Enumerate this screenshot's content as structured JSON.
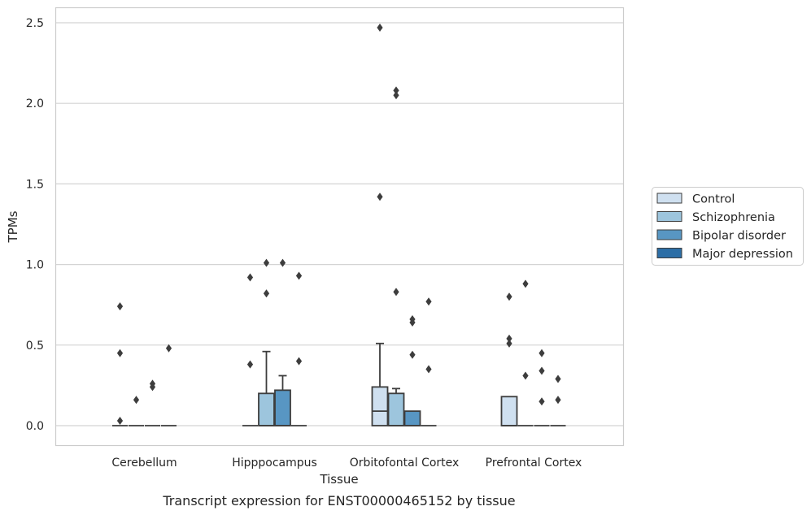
{
  "chart_data": {
    "type": "box",
    "title": "",
    "caption": "Transcript expression for ENST00000465152 by tissue",
    "xlabel": "Tissue",
    "ylabel": "TPMs",
    "ylim": [
      -0.12,
      2.6
    ],
    "yticks": [
      "0.0",
      "0.5",
      "1.0",
      "1.5",
      "2.0",
      "2.5"
    ],
    "grid": true,
    "legend_position": "right",
    "categories": [
      "Cerebellum",
      "Hipppocampus",
      "Orbitofontal Cortex",
      "Prefrontal Cortex"
    ],
    "series": [
      {
        "name": "Control",
        "color": "#cfe0f0",
        "boxes": [
          {
            "q1": 0,
            "median": 0,
            "q3": 0,
            "whisker_low": 0,
            "whisker_high": 0,
            "outliers": [
              0.74,
              0.45,
              0.03
            ]
          },
          {
            "q1": 0,
            "median": 0,
            "q3": 0,
            "whisker_low": 0,
            "whisker_high": 0,
            "outliers": [
              0.92,
              0.38
            ]
          },
          {
            "q1": 0,
            "median": 0.09,
            "q3": 0.24,
            "whisker_low": 0,
            "whisker_high": 0.51,
            "outliers": [
              2.47,
              1.42
            ]
          },
          {
            "q1": 0,
            "median": 0,
            "q3": 0.18,
            "whisker_low": 0,
            "whisker_high": 0.18,
            "outliers": [
              0.8,
              0.54,
              0.51
            ]
          }
        ]
      },
      {
        "name": "Schizophrenia",
        "color": "#9dc5dd",
        "boxes": [
          {
            "q1": 0,
            "median": 0,
            "q3": 0,
            "whisker_low": 0,
            "whisker_high": 0,
            "outliers": [
              0.16
            ]
          },
          {
            "q1": 0,
            "median": 0,
            "q3": 0.2,
            "whisker_low": 0,
            "whisker_high": 0.46,
            "outliers": [
              1.01,
              0.82
            ]
          },
          {
            "q1": 0,
            "median": 0,
            "q3": 0.2,
            "whisker_low": 0,
            "whisker_high": 0.23,
            "outliers": [
              2.08,
              2.05,
              0.83
            ]
          },
          {
            "q1": 0,
            "median": 0,
            "q3": 0,
            "whisker_low": 0,
            "whisker_high": 0,
            "outliers": [
              0.88,
              0.31
            ]
          }
        ]
      },
      {
        "name": "Bipolar disorder",
        "color": "#5896c3",
        "boxes": [
          {
            "q1": 0,
            "median": 0,
            "q3": 0,
            "whisker_low": 0,
            "whisker_high": 0,
            "outliers": [
              0.26,
              0.24
            ]
          },
          {
            "q1": 0,
            "median": 0,
            "q3": 0.22,
            "whisker_low": 0,
            "whisker_high": 0.31,
            "outliers": [
              1.01
            ]
          },
          {
            "q1": 0,
            "median": 0,
            "q3": 0.09,
            "whisker_low": 0,
            "whisker_high": 0.09,
            "outliers": [
              0.66,
              0.64,
              0.44
            ]
          },
          {
            "q1": 0,
            "median": 0,
            "q3": 0,
            "whisker_low": 0,
            "whisker_high": 0,
            "outliers": [
              0.45,
              0.34,
              0.15
            ]
          }
        ]
      },
      {
        "name": "Major depression",
        "color": "#2c6ea6",
        "boxes": [
          {
            "q1": 0,
            "median": 0,
            "q3": 0,
            "whisker_low": 0,
            "whisker_high": 0,
            "outliers": [
              0.48
            ]
          },
          {
            "q1": 0,
            "median": 0,
            "q3": 0,
            "whisker_low": 0,
            "whisker_high": 0,
            "outliers": [
              0.93,
              0.4
            ]
          },
          {
            "q1": 0,
            "median": 0,
            "q3": 0,
            "whisker_low": 0,
            "whisker_high": 0,
            "outliers": [
              0.77,
              0.35
            ]
          },
          {
            "q1": 0,
            "median": 0,
            "q3": 0,
            "whisker_low": 0,
            "whisker_high": 0,
            "outliers": [
              0.29,
              0.16
            ]
          }
        ]
      }
    ]
  }
}
